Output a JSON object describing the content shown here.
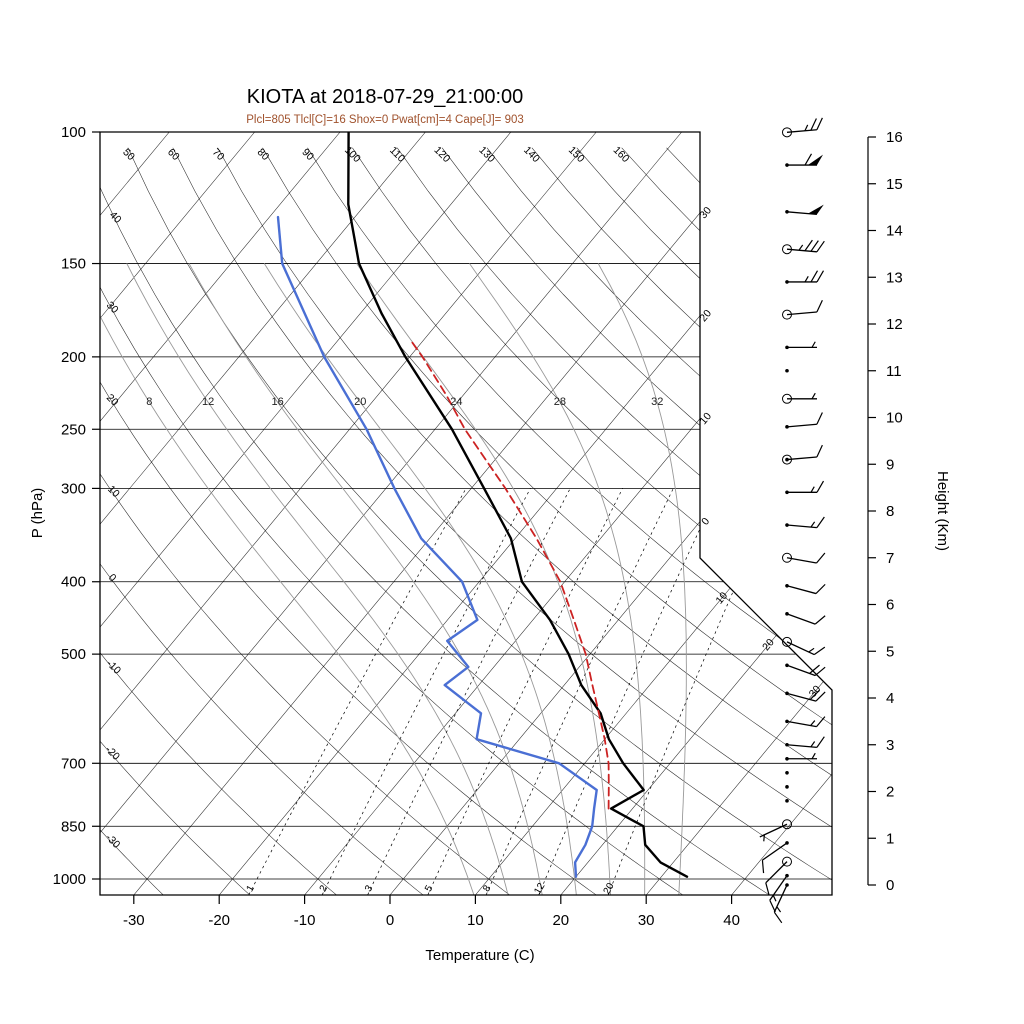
{
  "title": "KIOTA at 2018-07-29_21:00:00",
  "subtitle": "Plcl=805 Tlcl[C]=16 Shox=0 Pwat[cm]=4 Cape[J]= 903",
  "colors": {
    "temperature": "#000000",
    "dewpoint": "#4a6fd4",
    "parcel": "#cc2222",
    "subtitle_text": "#a0522d",
    "moist_adiabat": "#999999",
    "grid": "#000000"
  },
  "axes": {
    "y_label": "P (hPa)",
    "x_label": "Temperature (C)",
    "height_label": "Height (Km)",
    "pressure_ticks": [
      100,
      150,
      200,
      250,
      300,
      400,
      500,
      700,
      850,
      1000
    ],
    "temp_ticks": [
      -30,
      -20,
      -10,
      0,
      10,
      20,
      30,
      40
    ],
    "height_ticks": [
      0,
      1,
      2,
      3,
      4,
      5,
      6,
      7,
      8,
      9,
      10,
      11,
      12,
      13,
      14,
      15,
      16
    ]
  },
  "chart_data": {
    "type": "line",
    "chart_kind": "skew-t log-p sounding",
    "station": "KIOTA",
    "datetime": "2018-07-29_21:00:00",
    "derived": {
      "Plcl_hPa": 805,
      "Tlcl_C": 16,
      "Shox": 0,
      "Pwat_cm": 4,
      "Cape_J": 903
    },
    "pressure_axis_hPa": [
      100,
      150,
      200,
      250,
      300,
      400,
      500,
      700,
      850,
      1000
    ],
    "temp_axis_C": [
      -30,
      -20,
      -10,
      0,
      10,
      20,
      30,
      40
    ],
    "height_axis_km": [
      0,
      1,
      2,
      3,
      4,
      5,
      6,
      7,
      8,
      9,
      10,
      11,
      12,
      13,
      14,
      15,
      16
    ],
    "series": [
      {
        "name": "temperature",
        "color": "#000000",
        "style": "solid",
        "points": [
          {
            "p": 993,
            "t": 33
          },
          {
            "p": 950,
            "t": 28.5
          },
          {
            "p": 900,
            "t": 25
          },
          {
            "p": 850,
            "t": 23
          },
          {
            "p": 805,
            "t": 17.5
          },
          {
            "p": 760,
            "t": 19.5
          },
          {
            "p": 700,
            "t": 14.5
          },
          {
            "p": 650,
            "t": 10.5
          },
          {
            "p": 600,
            "t": 7
          },
          {
            "p": 550,
            "t": 2
          },
          {
            "p": 500,
            "t": -2.5
          },
          {
            "p": 450,
            "t": -8
          },
          {
            "p": 400,
            "t": -15
          },
          {
            "p": 350,
            "t": -20.5
          },
          {
            "p": 300,
            "t": -28.5
          },
          {
            "p": 250,
            "t": -38
          },
          {
            "p": 200,
            "t": -50.5
          },
          {
            "p": 175,
            "t": -57.5
          },
          {
            "p": 150,
            "t": -65
          },
          {
            "p": 125,
            "t": -72
          },
          {
            "p": 100,
            "t": -79
          }
        ]
      },
      {
        "name": "dewpoint",
        "color": "#4a6fd4",
        "style": "solid",
        "points": [
          {
            "p": 993,
            "t": 20
          },
          {
            "p": 950,
            "t": 18.5
          },
          {
            "p": 900,
            "t": 18
          },
          {
            "p": 850,
            "t": 17
          },
          {
            "p": 805,
            "t": 15.5
          },
          {
            "p": 760,
            "t": 14
          },
          {
            "p": 700,
            "t": 7
          },
          {
            "p": 650,
            "t": -5
          },
          {
            "p": 600,
            "t": -7
          },
          {
            "p": 550,
            "t": -14
          },
          {
            "p": 520,
            "t": -13
          },
          {
            "p": 480,
            "t": -18
          },
          {
            "p": 450,
            "t": -16.5
          },
          {
            "p": 400,
            "t": -22
          },
          {
            "p": 350,
            "t": -31
          },
          {
            "p": 300,
            "t": -39
          },
          {
            "p": 250,
            "t": -48
          },
          {
            "p": 200,
            "t": -60
          },
          {
            "p": 150,
            "t": -74
          },
          {
            "p": 130,
            "t": -79
          }
        ]
      },
      {
        "name": "parcel",
        "color": "#cc2222",
        "style": "dashed",
        "points": [
          {
            "p": 805,
            "t": 17.2
          },
          {
            "p": 750,
            "t": 15
          },
          {
            "p": 700,
            "t": 12.8
          },
          {
            "p": 650,
            "t": 10
          },
          {
            "p": 600,
            "t": 6.8
          },
          {
            "p": 550,
            "t": 3.3
          },
          {
            "p": 500,
            "t": -0.5
          },
          {
            "p": 450,
            "t": -5.2
          },
          {
            "p": 400,
            "t": -10.5
          },
          {
            "p": 350,
            "t": -17.5
          },
          {
            "p": 300,
            "t": -26
          },
          {
            "p": 250,
            "t": -36.5
          },
          {
            "p": 225,
            "t": -42
          },
          {
            "p": 200,
            "t": -48.5
          },
          {
            "p": 190,
            "t": -51.5
          }
        ]
      }
    ],
    "wind_barbs": [
      {
        "km": 16.1,
        "spd": 25,
        "dir": 85,
        "marker": "circle"
      },
      {
        "km": 15.4,
        "spd": 60,
        "dir": 90,
        "marker": "dot"
      },
      {
        "km": 14.4,
        "spd": 50,
        "dir": 95,
        "marker": "dot"
      },
      {
        "km": 13.6,
        "spd": 35,
        "dir": 95,
        "marker": "circle"
      },
      {
        "km": 12.9,
        "spd": 25,
        "dir": 90,
        "marker": "dot"
      },
      {
        "km": 12.2,
        "spd": 10,
        "dir": 85,
        "marker": "circle"
      },
      {
        "km": 11.5,
        "spd": 5,
        "dir": 90,
        "marker": "dot"
      },
      {
        "km": 11.0,
        "spd": 0,
        "dir": 0,
        "marker": "dot"
      },
      {
        "km": 10.4,
        "spd": 5,
        "dir": 90,
        "marker": "circle"
      },
      {
        "km": 9.8,
        "spd": 10,
        "dir": 85,
        "marker": "dot"
      },
      {
        "km": 9.1,
        "spd": 10,
        "dir": 85,
        "marker": "dblcircle"
      },
      {
        "km": 8.4,
        "spd": 15,
        "dir": 90,
        "marker": "dot"
      },
      {
        "km": 7.7,
        "spd": 15,
        "dir": 95,
        "marker": "dot"
      },
      {
        "km": 7.0,
        "spd": 10,
        "dir": 100,
        "marker": "circle"
      },
      {
        "km": 6.4,
        "spd": 10,
        "dir": 105,
        "marker": "dot"
      },
      {
        "km": 5.8,
        "spd": 10,
        "dir": 110,
        "marker": "dot"
      },
      {
        "km": 5.2,
        "spd": 15,
        "dir": 115,
        "marker": "circle"
      },
      {
        "km": 4.7,
        "spd": 20,
        "dir": 110,
        "marker": "dot"
      },
      {
        "km": 4.1,
        "spd": 20,
        "dir": 105,
        "marker": "dot"
      },
      {
        "km": 3.5,
        "spd": 15,
        "dir": 100,
        "marker": "dot"
      },
      {
        "km": 3.0,
        "spd": 15,
        "dir": 95,
        "marker": "dot"
      },
      {
        "km": 2.7,
        "spd": 5,
        "dir": 90,
        "marker": "dot"
      },
      {
        "km": 2.4,
        "spd": 0,
        "dir": 0,
        "marker": "dot"
      },
      {
        "km": 2.1,
        "spd": 0,
        "dir": 0,
        "marker": "dot"
      },
      {
        "km": 1.8,
        "spd": 0,
        "dir": 0,
        "marker": "dot"
      },
      {
        "km": 1.3,
        "spd": 5,
        "dir": 245,
        "marker": "circle"
      },
      {
        "km": 0.9,
        "spd": 10,
        "dir": 235,
        "marker": "dot"
      },
      {
        "km": 0.5,
        "spd": 10,
        "dir": 225,
        "marker": "circle"
      },
      {
        "km": 0.2,
        "spd": 15,
        "dir": 215,
        "marker": "dot"
      },
      {
        "km": 0.0,
        "spd": 15,
        "dir": 205,
        "marker": "dot"
      }
    ],
    "isopleths": {
      "dry_adiabat_labels_top": [
        "50",
        "60",
        "70",
        "80",
        "90",
        "100",
        "110",
        "120",
        "130",
        "140",
        "150",
        "160"
      ],
      "dry_adiabat_labels_left": [
        "40",
        "30",
        "20",
        "10",
        "0",
        "-10",
        "-20",
        "-30"
      ],
      "isotherm_labels_right": [
        "30",
        "20",
        "10",
        "0"
      ],
      "isotherm_labels_diagonal": [
        "10",
        "20",
        "30"
      ],
      "moist_adiabat_labels": [
        "8",
        "12",
        "16",
        "20",
        "24",
        "28",
        "32"
      ],
      "moist_adiabat_values": [
        8,
        12,
        16,
        20,
        24,
        28,
        32
      ],
      "mixing_ratio_labels": [
        "1",
        "2",
        "3",
        "5",
        "8",
        "12",
        "20"
      ],
      "mixing_ratio_values": [
        1,
        2,
        3,
        5,
        8,
        12,
        20
      ]
    }
  }
}
